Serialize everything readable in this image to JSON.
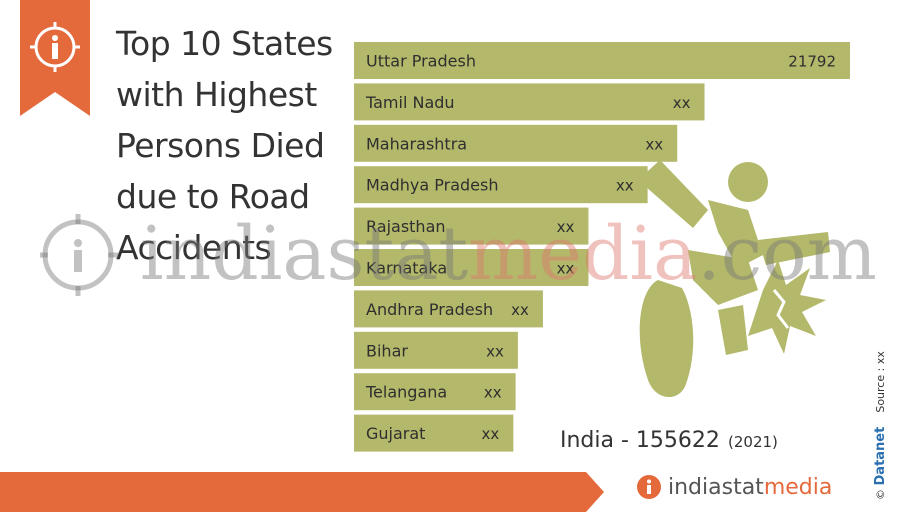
{
  "header": {
    "title_lines": [
      "Top 10 States",
      "with Highest",
      "Persons Died",
      "due to Road",
      "Accidents"
    ]
  },
  "chart_data": {
    "type": "bar",
    "orientation": "horizontal",
    "categories": [
      "Uttar Pradesh",
      "Tamil Nadu",
      "Maharashtra",
      "Madhya Pradesh",
      "Rajasthan",
      "Karnataka",
      "Andhra Pradesh",
      "Bihar",
      "Telangana",
      "Gujarat"
    ],
    "values": [
      21792,
      15400,
      14200,
      12900,
      10300,
      10300,
      8300,
      7200,
      7100,
      7000
    ],
    "labels": [
      "21792",
      "xx",
      "xx",
      "xx",
      "xx",
      "xx",
      "xx",
      "xx",
      "xx",
      "xx"
    ],
    "xlim": [
      0,
      21792
    ],
    "bar_color": "#b3b86a"
  },
  "summary": {
    "total_text": "India - 155622",
    "year_text": "(2021)"
  },
  "watermark": {
    "part_a": "indiastat",
    "part_b": "media",
    "part_c": ".com"
  },
  "footer": {
    "brand_a": "indiastat",
    "brand_b": "media",
    "credit_name": "Datanet",
    "source_text": "Source : xx",
    "copyright": "©"
  },
  "colors": {
    "accent": "#e46a3c",
    "bar": "#b3b86a",
    "text": "#333333"
  },
  "icons": {
    "badge": "info-icon",
    "illustration": "motorcycle-crash-icon"
  }
}
